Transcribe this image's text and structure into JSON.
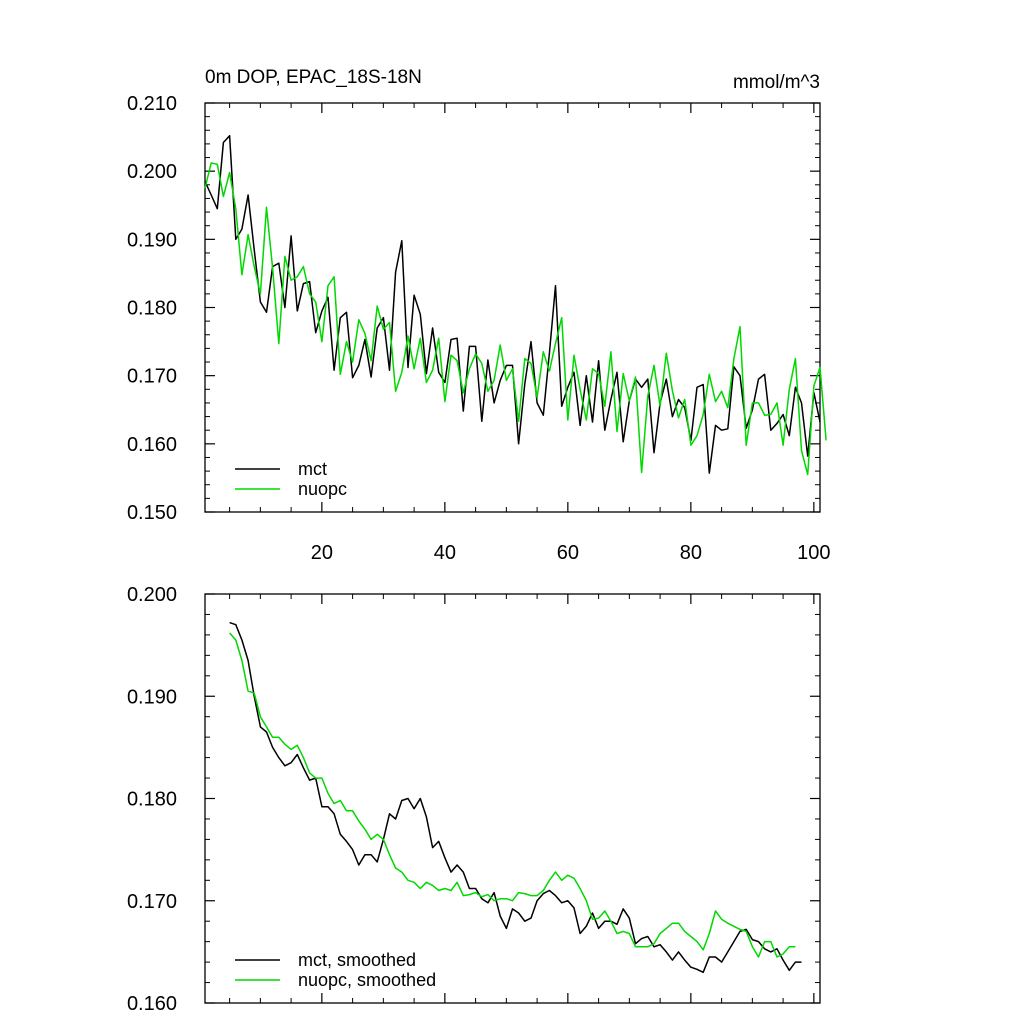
{
  "chart_data": [
    {
      "type": "line",
      "title": "0m DOP, EPAC_18S-18N",
      "units": "mmol/m^3",
      "xlabel": "",
      "ylabel": "",
      "xlim": [
        1,
        101
      ],
      "ylim": [
        0.15,
        0.21
      ],
      "xticks": [
        20,
        40,
        60,
        80,
        100
      ],
      "xtick_labels": [
        "20",
        "40",
        "60",
        "80",
        "100"
      ],
      "yticks": [
        0.15,
        0.16,
        0.17,
        0.18,
        0.19,
        0.2,
        0.21
      ],
      "ytick_labels": [
        "0.150",
        "0.160",
        "0.170",
        "0.180",
        "0.190",
        "0.200",
        "0.210"
      ],
      "legend_position": "bottom-left",
      "x_start": 1,
      "series": [
        {
          "name": "mct",
          "color": "#000000",
          "values": [
            0.1985,
            0.1965,
            0.1945,
            0.2042,
            0.2052,
            0.19,
            0.1915,
            0.1965,
            0.1885,
            0.1808,
            0.1793,
            0.186,
            0.1865,
            0.18,
            0.1905,
            0.1795,
            0.1835,
            0.1838,
            0.1763,
            0.1795,
            0.1815,
            0.1708,
            0.1785,
            0.1793,
            0.1697,
            0.1715,
            0.1753,
            0.1698,
            0.177,
            0.1785,
            0.1708,
            0.1852,
            0.1898,
            0.1712,
            0.1818,
            0.179,
            0.1703,
            0.177,
            0.1705,
            0.169,
            0.1753,
            0.1755,
            0.1648,
            0.1743,
            0.1743,
            0.1633,
            0.1723,
            0.166,
            0.1693,
            0.1715,
            0.1715,
            0.16,
            0.1688,
            0.175,
            0.166,
            0.1642,
            0.1733,
            0.1832,
            0.1655,
            0.1683,
            0.1705,
            0.1627,
            0.17,
            0.1632,
            0.1722,
            0.162,
            0.1665,
            0.1705,
            0.1603,
            0.1663,
            0.1695,
            0.1683,
            0.1695,
            0.1587,
            0.166,
            0.1695,
            0.164,
            0.1665,
            0.1653,
            0.1605,
            0.1683,
            0.1687,
            0.1557,
            0.1627,
            0.162,
            0.1622,
            0.1713,
            0.17,
            0.1623,
            0.165,
            0.1695,
            0.1702,
            0.162,
            0.163,
            0.1643,
            0.1612,
            0.1683,
            0.166,
            0.1582,
            0.1675,
            0.1632
          ]
        },
        {
          "name": "nuopc",
          "color": "#00d800",
          "values": [
            0.1975,
            0.2012,
            0.201,
            0.1963,
            0.1998,
            0.1945,
            0.1848,
            0.1907,
            0.186,
            0.182,
            0.1947,
            0.1858,
            0.1747,
            0.1875,
            0.184,
            0.1845,
            0.186,
            0.182,
            0.1808,
            0.175,
            0.1832,
            0.1845,
            0.1702,
            0.175,
            0.172,
            0.1782,
            0.1762,
            0.1722,
            0.1802,
            0.1768,
            0.1778,
            0.1677,
            0.1705,
            0.1758,
            0.171,
            0.1755,
            0.169,
            0.1708,
            0.1755,
            0.1662,
            0.173,
            0.1722,
            0.1675,
            0.171,
            0.1732,
            0.1718,
            0.1677,
            0.1693,
            0.1745,
            0.1693,
            0.171,
            0.1633,
            0.1725,
            0.1718,
            0.1668,
            0.1735,
            0.1707,
            0.1747,
            0.1785,
            0.1635,
            0.173,
            0.168,
            0.1635,
            0.171,
            0.1703,
            0.1655,
            0.1735,
            0.1618,
            0.1703,
            0.1663,
            0.1698,
            0.1558,
            0.167,
            0.1715,
            0.1655,
            0.1733,
            0.1678,
            0.1638,
            0.1665,
            0.1598,
            0.1612,
            0.1643,
            0.1702,
            0.1662,
            0.1677,
            0.1653,
            0.1725,
            0.1772,
            0.1598,
            0.166,
            0.166,
            0.1642,
            0.1643,
            0.166,
            0.1598,
            0.168,
            0.1725,
            0.159,
            0.1555,
            0.1685,
            0.1712,
            0.1605
          ]
        }
      ]
    },
    {
      "type": "line",
      "title": "",
      "xlabel": "",
      "ylabel": "",
      "xlim": [
        1,
        101
      ],
      "ylim": [
        0.16,
        0.2
      ],
      "xticks": [
        20,
        40,
        60,
        80,
        100
      ],
      "yticks": [
        0.16,
        0.17,
        0.18,
        0.19,
        0.2
      ],
      "ytick_labels": [
        "0.160",
        "0.170",
        "0.180",
        "0.190",
        "0.200"
      ],
      "legend_position": "bottom-left",
      "x_start": 5,
      "series": [
        {
          "name": "mct, smoothed",
          "color": "#000000",
          "values": [
            0.1972,
            0.197,
            0.1955,
            0.1935,
            0.19,
            0.187,
            0.1865,
            0.185,
            0.184,
            0.1832,
            0.1835,
            0.1843,
            0.183,
            0.1818,
            0.182,
            0.1792,
            0.1792,
            0.1785,
            0.1765,
            0.1758,
            0.175,
            0.1735,
            0.1745,
            0.1745,
            0.1738,
            0.176,
            0.1785,
            0.178,
            0.1798,
            0.18,
            0.179,
            0.18,
            0.1782,
            0.1752,
            0.1758,
            0.1742,
            0.1728,
            0.1735,
            0.1728,
            0.1712,
            0.1712,
            0.1702,
            0.1698,
            0.1708,
            0.1685,
            0.1673,
            0.1692,
            0.1688,
            0.168,
            0.1683,
            0.17,
            0.1707,
            0.171,
            0.1705,
            0.1698,
            0.17,
            0.1693,
            0.1668,
            0.1675,
            0.1688,
            0.1673,
            0.168,
            0.168,
            0.1677,
            0.1692,
            0.1683,
            0.1658,
            0.1663,
            0.1665,
            0.1655,
            0.1657,
            0.165,
            0.1642,
            0.165,
            0.1642,
            0.1635,
            0.1633,
            0.163,
            0.1645,
            0.1645,
            0.164,
            0.165,
            0.166,
            0.167,
            0.1672,
            0.1662,
            0.166,
            0.1653,
            0.165,
            0.1653,
            0.1642,
            0.1632,
            0.164,
            0.164
          ]
        },
        {
          "name": "nuopc, smoothed",
          "color": "#00d800",
          "values": [
            0.1962,
            0.1955,
            0.1935,
            0.1905,
            0.1903,
            0.188,
            0.187,
            0.186,
            0.186,
            0.1853,
            0.1848,
            0.1852,
            0.184,
            0.1825,
            0.182,
            0.182,
            0.1805,
            0.1795,
            0.1798,
            0.1788,
            0.1788,
            0.1778,
            0.177,
            0.176,
            0.1765,
            0.176,
            0.1745,
            0.1732,
            0.1728,
            0.172,
            0.1718,
            0.1712,
            0.1718,
            0.1715,
            0.171,
            0.1712,
            0.171,
            0.1718,
            0.1705,
            0.1706,
            0.1708,
            0.1704,
            0.1706,
            0.17,
            0.1702,
            0.1702,
            0.17,
            0.1708,
            0.1707,
            0.1705,
            0.1705,
            0.171,
            0.172,
            0.1728,
            0.172,
            0.1725,
            0.1722,
            0.1712,
            0.17,
            0.1682,
            0.1683,
            0.169,
            0.168,
            0.1668,
            0.167,
            0.1668,
            0.1655,
            0.1655,
            0.1655,
            0.1658,
            0.1668,
            0.1673,
            0.1678,
            0.1678,
            0.167,
            0.1665,
            0.166,
            0.1652,
            0.1668,
            0.169,
            0.1682,
            0.1678,
            0.1675,
            0.1672,
            0.167,
            0.1655,
            0.1645,
            0.166,
            0.166,
            0.1645,
            0.1648,
            0.1655,
            0.1655
          ]
        }
      ]
    }
  ]
}
